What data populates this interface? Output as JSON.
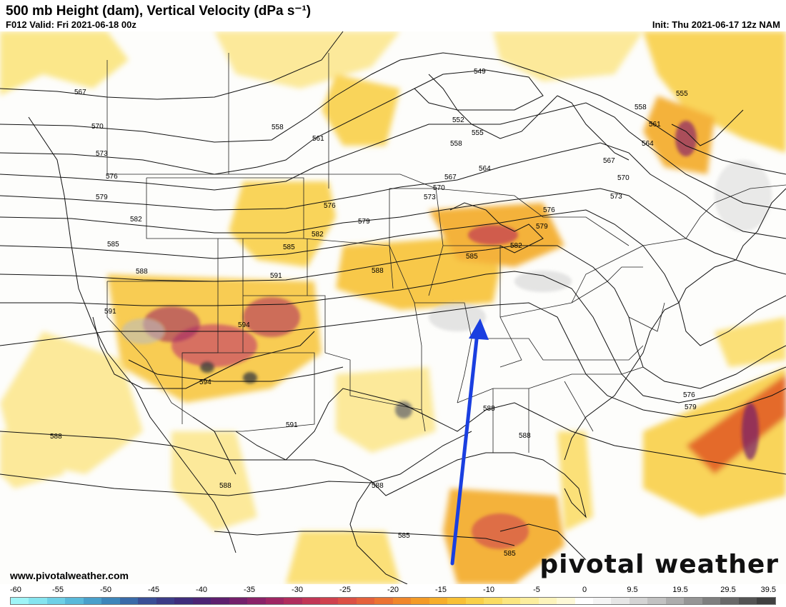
{
  "header": {
    "title": "500 mb Height (dam), Vertical Velocity (dPa s⁻¹)",
    "valid": "F012 Valid: Fri 2021-06-18 00z",
    "init": "Init: Thu 2021-06-17 12z NAM"
  },
  "footer": {
    "website": "www.pivotalweather.com",
    "brand": "pivotal weather"
  },
  "contour_labels": [
    "549",
    "552",
    "555",
    "555",
    "558",
    "558",
    "558",
    "561",
    "561",
    "564",
    "564",
    "567",
    "567",
    "567",
    "570",
    "570",
    "570",
    "573",
    "573",
    "573",
    "576",
    "576",
    "576",
    "576",
    "579",
    "579",
    "579",
    "579",
    "582",
    "582",
    "582",
    "585",
    "585",
    "585",
    "585",
    "585",
    "588",
    "588",
    "588",
    "588",
    "588",
    "588",
    "588",
    "591",
    "591",
    "591",
    "594",
    "594"
  ],
  "colorbar": {
    "ticks": [
      "-60",
      "-55",
      "-50",
      "-45",
      "-40",
      "-35",
      "-30",
      "-25",
      "-20",
      "-15",
      "-10",
      "-5",
      "0",
      "9.5",
      "19.5",
      "29.5",
      "39.5"
    ],
    "colors": [
      "#9ff4f7",
      "#86e4ef",
      "#6fd0e6",
      "#5ab9da",
      "#4aa0cb",
      "#3e86ba",
      "#3a6aa8",
      "#3a4f96",
      "#3c3c87",
      "#3f2d7c",
      "#4c2474",
      "#5e1f6e",
      "#74206b",
      "#8a2268",
      "#9e2663",
      "#b02d5d",
      "#c13656",
      "#cf414e",
      "#db5045",
      "#e4613c",
      "#eb7333",
      "#f0872c",
      "#f39b28",
      "#f6ae2b",
      "#f8c035",
      "#f9d048",
      "#fadc62",
      "#fbe680",
      "#fcee9e",
      "#fdf4bc",
      "#fef9d8",
      "#ffffff",
      "#f5f5f5",
      "#e6e6e6",
      "#d4d4d4",
      "#c2c2c2",
      "#adadad",
      "#969696",
      "#7f7f7f",
      "#696969",
      "#545454",
      "#404040"
    ]
  },
  "annotation": {
    "arrow_color": "#1a3fe0"
  }
}
